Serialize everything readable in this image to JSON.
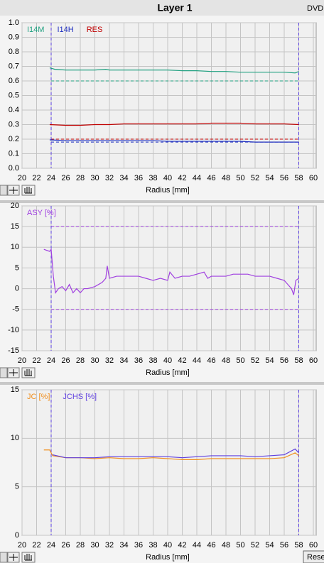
{
  "title": "Layer 1",
  "corner_label": "DVD",
  "button": "Reset",
  "chart_data": [
    {
      "type": "line",
      "xlabel": "Radius [mm]",
      "xlim": [
        20,
        60
      ],
      "xticks": [
        20,
        22,
        24,
        26,
        28,
        30,
        32,
        34,
        36,
        38,
        40,
        42,
        44,
        46,
        48,
        50,
        52,
        54,
        56,
        58,
        60
      ],
      "ylim": [
        0,
        1
      ],
      "yticks": [
        {
          "value": 0,
          "label": "0.0"
        },
        0.1,
        0.2,
        0.3,
        0.4,
        0.5,
        0.6,
        0.7,
        0.8,
        0.9,
        {
          "value": 1,
          "label": "1.0"
        }
      ],
      "grid": true,
      "vlines": [
        24,
        58
      ],
      "vline_color": "#5a3ee0",
      "hlines": [
        {
          "value": 0.6,
          "color": "#20a080"
        },
        {
          "value": 0.2,
          "color": "#c00000"
        },
        {
          "value": 0.18,
          "color": "#2030c0"
        }
      ],
      "series": [
        {
          "name": "I14M",
          "color": "#20a080",
          "x": [
            23.8,
            24.5,
            26,
            28,
            30,
            31.5,
            32,
            34,
            36,
            38,
            40,
            42,
            44,
            46,
            48,
            50,
            52,
            54,
            56,
            57.5,
            58
          ],
          "values": [
            0.69,
            0.68,
            0.675,
            0.675,
            0.675,
            0.68,
            0.675,
            0.675,
            0.675,
            0.675,
            0.675,
            0.67,
            0.67,
            0.665,
            0.665,
            0.66,
            0.66,
            0.66,
            0.66,
            0.655,
            0.665
          ]
        },
        {
          "name": "I14H",
          "color": "#2030c0",
          "x": [
            23.8,
            26,
            28,
            30,
            32,
            34,
            36,
            38,
            40,
            42,
            44,
            46,
            48,
            50,
            52,
            54,
            56,
            58
          ],
          "values": [
            0.195,
            0.19,
            0.19,
            0.19,
            0.19,
            0.19,
            0.19,
            0.19,
            0.185,
            0.185,
            0.185,
            0.185,
            0.185,
            0.185,
            0.18,
            0.18,
            0.18,
            0.18
          ]
        },
        {
          "name": "RES",
          "color": "#c00000",
          "x": [
            23.8,
            26,
            28,
            30,
            32,
            34,
            36,
            38,
            40,
            42,
            44,
            46,
            48,
            50,
            52,
            54,
            56,
            58
          ],
          "values": [
            0.3,
            0.295,
            0.295,
            0.3,
            0.3,
            0.305,
            0.305,
            0.305,
            0.305,
            0.305,
            0.305,
            0.31,
            0.31,
            0.31,
            0.305,
            0.305,
            0.305,
            0.3
          ]
        }
      ]
    },
    {
      "type": "line",
      "xlabel": "Radius [mm]",
      "xlim": [
        20,
        60
      ],
      "xticks": [
        20,
        22,
        24,
        26,
        28,
        30,
        32,
        34,
        36,
        38,
        40,
        42,
        44,
        46,
        48,
        50,
        52,
        54,
        56,
        58,
        60
      ],
      "ylim": [
        -15,
        20
      ],
      "yticks": [
        -15,
        -10,
        -5,
        0,
        5,
        10,
        15,
        20
      ],
      "grid": true,
      "vlines": [
        24,
        58
      ],
      "vline_color": "#5a3ee0",
      "hlines": [
        {
          "value": 15,
          "color": "#a040e0"
        },
        {
          "value": -5,
          "color": "#a040e0"
        }
      ],
      "series": [
        {
          "name": "ASY [%]",
          "color": "#a040e0",
          "x": [
            23,
            23.8,
            24,
            24.3,
            24.6,
            25,
            25.5,
            26,
            26.5,
            27,
            27.5,
            28,
            28.5,
            29,
            30,
            31,
            31.5,
            31.7,
            32,
            33,
            34,
            35,
            36,
            37,
            38,
            39,
            40,
            40.3,
            41,
            42,
            43,
            44,
            45,
            45.5,
            46,
            47,
            48,
            49,
            50,
            51,
            52,
            53,
            54,
            55,
            56,
            56.5,
            57,
            57.3,
            57.6,
            58
          ],
          "values": [
            9.5,
            9,
            9.5,
            3,
            -1,
            0,
            0.5,
            -0.5,
            1,
            -1,
            0,
            -1,
            0,
            0,
            0.5,
            1.5,
            2.5,
            5.5,
            2.5,
            3,
            3,
            3,
            3,
            2.5,
            2,
            2.5,
            2,
            4,
            2.5,
            3,
            3,
            3.5,
            4,
            2.5,
            3,
            3,
            3,
            3.5,
            3.5,
            3.5,
            3,
            3,
            3,
            2.5,
            2,
            1,
            0,
            -1.5,
            2,
            2.5
          ]
        }
      ]
    },
    {
      "type": "line",
      "xlabel": "Radius [mm]",
      "xlim": [
        20,
        60
      ],
      "xticks": [
        20,
        22,
        24,
        26,
        28,
        30,
        32,
        34,
        36,
        38,
        40,
        42,
        44,
        46,
        48,
        50,
        52,
        54,
        56,
        58,
        60
      ],
      "ylim": [
        0,
        15
      ],
      "yticks": [
        0,
        5,
        10,
        15
      ],
      "grid": true,
      "vlines": [
        24,
        58
      ],
      "vline_color": "#5a3ee0",
      "hlines": [],
      "series": [
        {
          "name": "JC [%]",
          "color": "#f09020",
          "x": [
            23,
            23.8,
            24.2,
            26,
            28,
            30,
            32,
            34,
            36,
            38,
            40,
            42,
            44,
            46,
            48,
            50,
            52,
            54,
            56,
            57.5,
            58
          ],
          "values": [
            8.8,
            8.8,
            8.2,
            8.0,
            8.0,
            7.9,
            8.0,
            7.9,
            7.9,
            8.0,
            7.9,
            7.8,
            7.8,
            7.9,
            7.9,
            7.9,
            7.9,
            7.9,
            8.0,
            8.5,
            8.2
          ]
        },
        {
          "name": "JCHS [%]",
          "color": "#6040e0",
          "x": [
            23,
            23.8,
            24.2,
            26,
            28,
            30,
            32,
            34,
            36,
            38,
            40,
            42,
            44,
            46,
            48,
            50,
            52,
            54,
            56,
            57.5,
            58
          ],
          "values": [
            null,
            null,
            8.3,
            8.0,
            8.0,
            8.0,
            8.1,
            8.1,
            8.1,
            8.1,
            8.1,
            8.0,
            8.1,
            8.2,
            8.2,
            8.2,
            8.1,
            8.2,
            8.3,
            8.9,
            8.5
          ]
        }
      ]
    }
  ]
}
